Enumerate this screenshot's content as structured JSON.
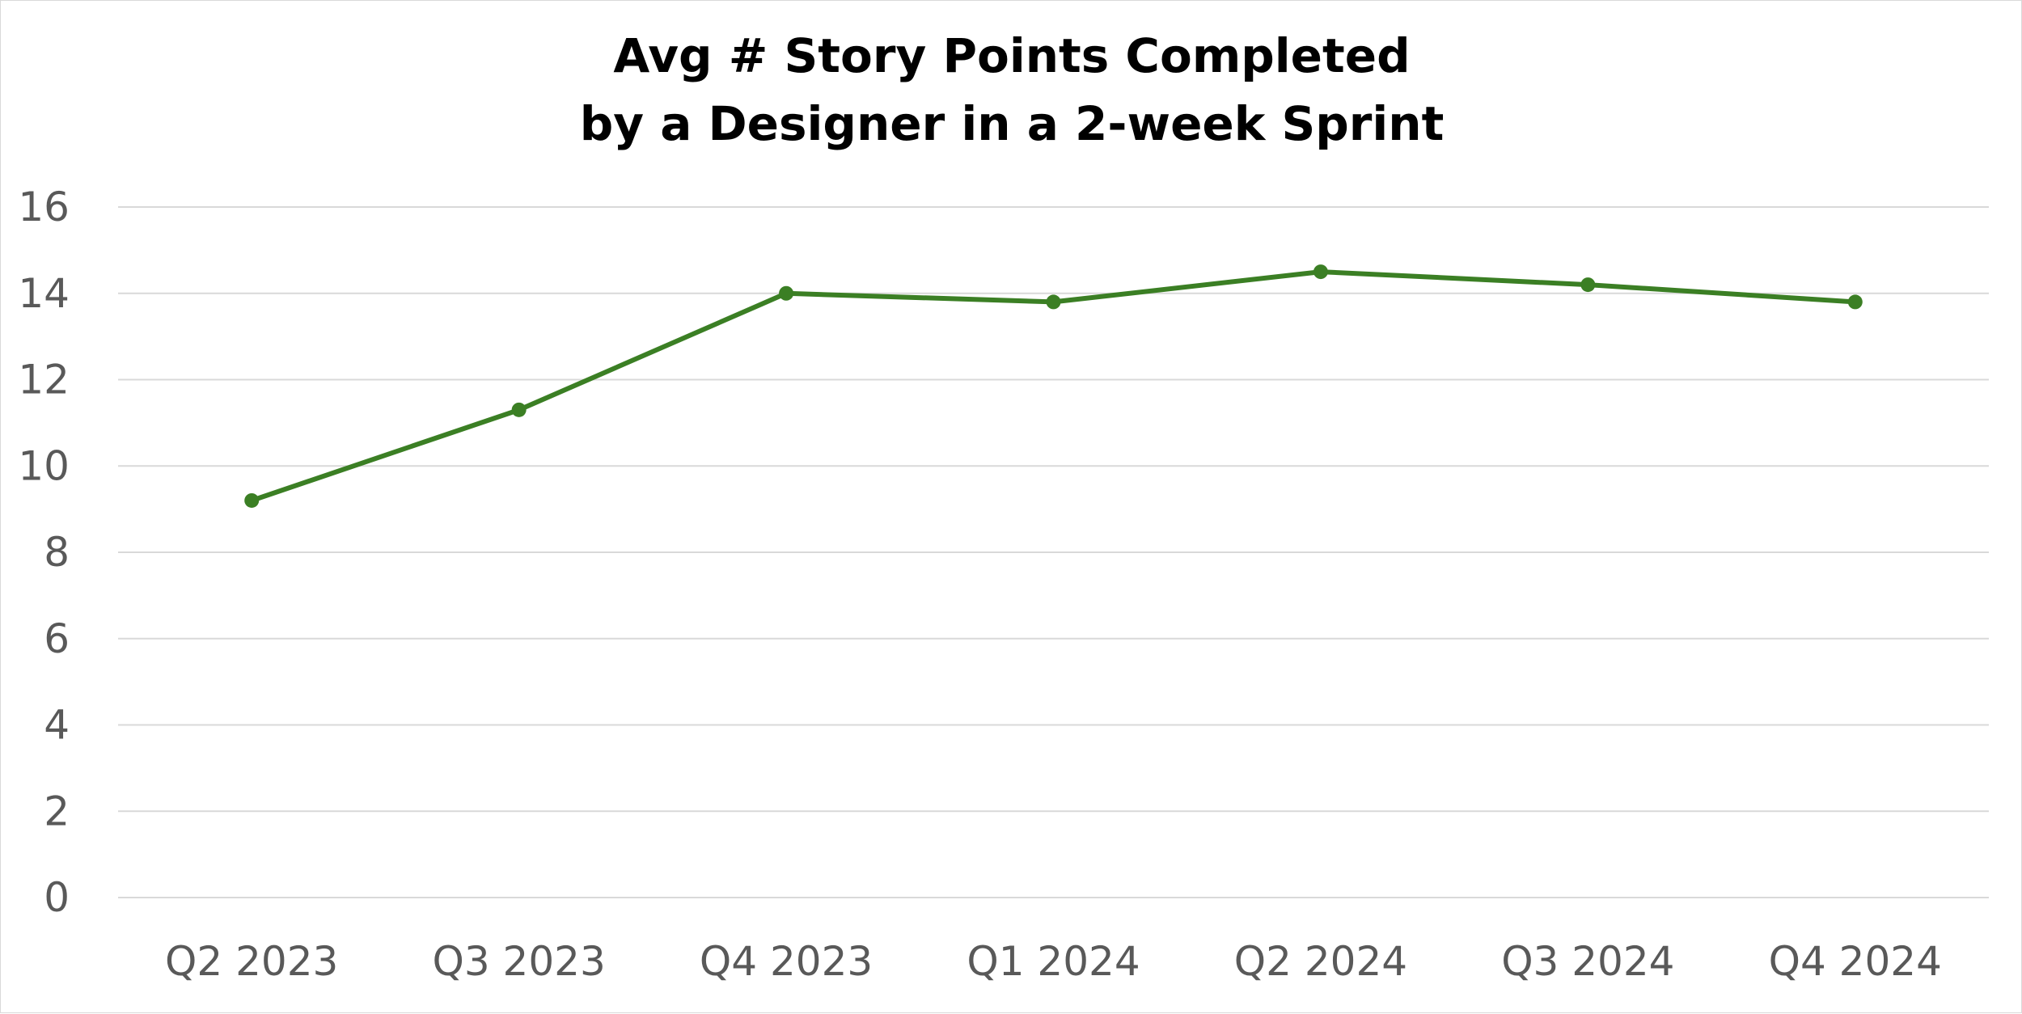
{
  "chart_data": {
    "type": "line",
    "title_lines": [
      "Avg # Story Points Completed",
      "by a Designer in a 2-week Sprint"
    ],
    "xlabel": "",
    "ylabel": "",
    "categories": [
      "Q2 2023",
      "Q3 2023",
      "Q4 2023",
      "Q1 2024",
      "Q2 2024",
      "Q3 2024",
      "Q4 2024"
    ],
    "series": [
      {
        "values": [
          9.2,
          11.3,
          14.0,
          13.8,
          14.5,
          14.2,
          13.8
        ],
        "color": "#3b7f24"
      }
    ],
    "ylim": [
      0,
      16
    ],
    "yticks": [
      "0",
      "2",
      "4",
      "6",
      "8",
      "10",
      "12",
      "14",
      "16"
    ],
    "grid": "horizontal",
    "legend": "none"
  }
}
